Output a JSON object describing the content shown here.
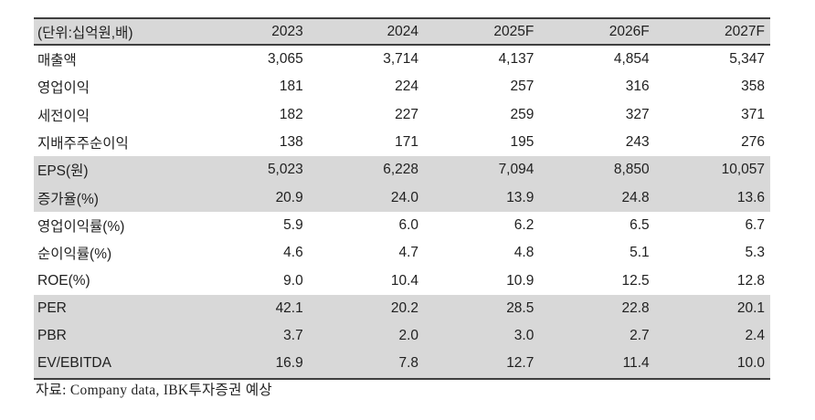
{
  "table": {
    "unit_label": "(단위:십억원,배)",
    "columns": [
      "2023",
      "2024",
      "2025F",
      "2026F",
      "2027F"
    ],
    "rows": [
      {
        "label": "매출액",
        "values": [
          "3,065",
          "3,714",
          "4,137",
          "4,854",
          "5,347"
        ],
        "shaded": false
      },
      {
        "label": "영업이익",
        "values": [
          "181",
          "224",
          "257",
          "316",
          "358"
        ],
        "shaded": false
      },
      {
        "label": "세전이익",
        "values": [
          "182",
          "227",
          "259",
          "327",
          "371"
        ],
        "shaded": false
      },
      {
        "label": "지배주주순이익",
        "values": [
          "138",
          "171",
          "195",
          "243",
          "276"
        ],
        "shaded": false
      },
      {
        "label": "EPS(원)",
        "values": [
          "5,023",
          "6,228",
          "7,094",
          "8,850",
          "10,057"
        ],
        "shaded": true
      },
      {
        "label": "증가율(%)",
        "values": [
          "20.9",
          "24.0",
          "13.9",
          "24.8",
          "13.6"
        ],
        "shaded": true
      },
      {
        "label": "영업이익률(%)",
        "values": [
          "5.9",
          "6.0",
          "6.2",
          "6.5",
          "6.7"
        ],
        "shaded": false
      },
      {
        "label": "순이익률(%)",
        "values": [
          "4.6",
          "4.7",
          "4.8",
          "5.1",
          "5.3"
        ],
        "shaded": false
      },
      {
        "label": "ROE(%)",
        "values": [
          "9.0",
          "10.4",
          "10.9",
          "12.5",
          "12.8"
        ],
        "shaded": false
      },
      {
        "label": "PER",
        "values": [
          "42.1",
          "20.2",
          "28.5",
          "22.8",
          "20.1"
        ],
        "shaded": true
      },
      {
        "label": "PBR",
        "values": [
          "3.7",
          "2.0",
          "3.0",
          "2.7",
          "2.4"
        ],
        "shaded": true
      },
      {
        "label": "EV/EBITDA",
        "values": [
          "16.9",
          "7.8",
          "12.7",
          "11.4",
          "10.0"
        ],
        "shaded": true
      }
    ],
    "source": "자료: Company data, IBK투자증권 예상"
  },
  "colors": {
    "shaded_row_bg": "#d8d8d8",
    "border_dark": "#3f3f3f",
    "text": "#1f1f1f",
    "background": "#ffffff"
  }
}
